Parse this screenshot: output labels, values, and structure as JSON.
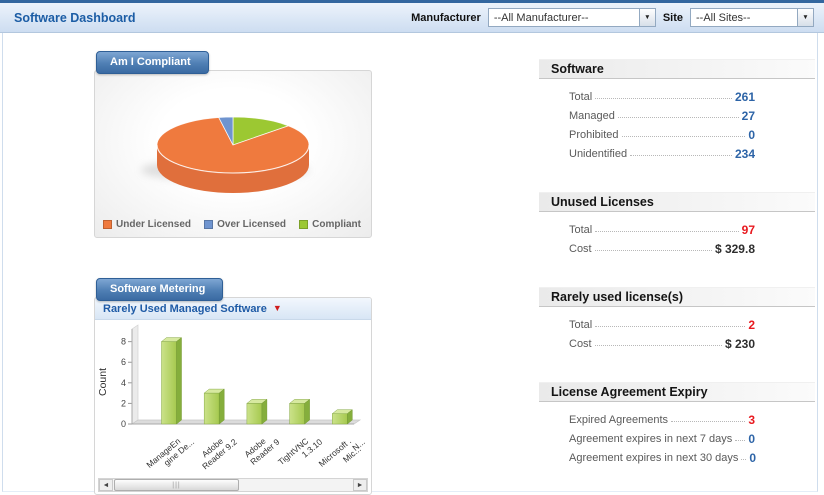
{
  "header": {
    "title": "Software Dashboard",
    "manufacturer_label": "Manufacturer",
    "manufacturer_value": "--All Manufacturer--",
    "site_label": "Site",
    "site_value": "--All Sites--"
  },
  "icons": {
    "dropdown_arrow": "▼",
    "subtitle_marker": "▼",
    "scroll_left": "◄",
    "scroll_right": "►",
    "scroll_grip": "|||"
  },
  "panels": {
    "compliance": {
      "title": "Am I Compliant",
      "legend": [
        {
          "label": "Under Licensed",
          "color": "#ef7a3e"
        },
        {
          "label": "Over Licensed",
          "color": "#6f94cf"
        },
        {
          "label": "Compliant",
          "color": "#9cc832"
        }
      ]
    },
    "metering": {
      "title": "Software Metering",
      "subtitle": "Rarely Used Managed Software"
    }
  },
  "chart_data": [
    {
      "type": "pie",
      "title": "Am I Compliant",
      "style": "3d",
      "legend_position": "bottom",
      "slices_clockwise_from_top": [
        {
          "label": "Compliant",
          "percent": 13,
          "color": "#9cc832"
        },
        {
          "label": "Under Licensed",
          "percent": 84,
          "color": "#ef7a3e"
        },
        {
          "label": "Over Licensed",
          "percent": 3,
          "color": "#6f94cf"
        }
      ]
    },
    {
      "type": "bar",
      "title": "Rarely Used Managed Software",
      "style": "3d",
      "ylabel": "Count",
      "yticks": [
        0,
        2,
        4,
        6,
        8
      ],
      "ylim": [
        0,
        9
      ],
      "bar_color": "#aed05e",
      "grid": false,
      "clipped_right": true,
      "categories": [
        "ManageEngine De...",
        "Adobe Reader 9.2",
        "Adobe Reader 9",
        "TightVNC 1.3.10",
        "Microsoft .N...",
        "Mic..."
      ],
      "category_display_lines": [
        [
          "ManageEn",
          "gine De..."
        ],
        [
          "Adobe",
          "Reader 9.2"
        ],
        [
          "Adobe",
          "Reader 9"
        ],
        [
          "TightVNC",
          "1.3.10"
        ],
        [
          "Microsoft .",
          "N..."
        ],
        [
          "Mic..."
        ]
      ],
      "values": [
        8,
        3,
        2,
        2,
        1,
        null
      ]
    }
  ],
  "stats_sections": [
    {
      "title": "Software",
      "rows": [
        {
          "label": "Total",
          "value": "261",
          "color_type": "blue"
        },
        {
          "label": "Managed",
          "value": "27",
          "color_type": "blue"
        },
        {
          "label": "Prohibited",
          "value": "0",
          "color_type": "blue"
        },
        {
          "label": "Unidentified",
          "value": "234",
          "color_type": "blue"
        }
      ]
    },
    {
      "title": "Unused Licenses",
      "rows": [
        {
          "label": "Total",
          "value": "97",
          "color_type": "red"
        },
        {
          "label": "Cost",
          "value": "$ 329.8",
          "color_type": "dark"
        }
      ]
    },
    {
      "title": "Rarely used license(s)",
      "rows": [
        {
          "label": "Total",
          "value": "2",
          "color_type": "red"
        },
        {
          "label": "Cost",
          "value": "$ 230",
          "color_type": "dark"
        }
      ]
    },
    {
      "title": "License Agreement Expiry",
      "rows": [
        {
          "label": "Expired Agreements",
          "value": "3",
          "color_type": "red"
        },
        {
          "label": "Agreement expires in next 7 days",
          "value": "0",
          "color_type": "blue"
        },
        {
          "label": "Agreement expires in next 30 days",
          "value": "0",
          "color_type": "blue"
        }
      ]
    }
  ],
  "colors": {
    "value_blue": "#2d64a7",
    "value_red": "#e8191f",
    "value_dark": "#2e2e2e",
    "tab_blue": "#4f7fb4",
    "title_blue": "#1c5da5"
  }
}
